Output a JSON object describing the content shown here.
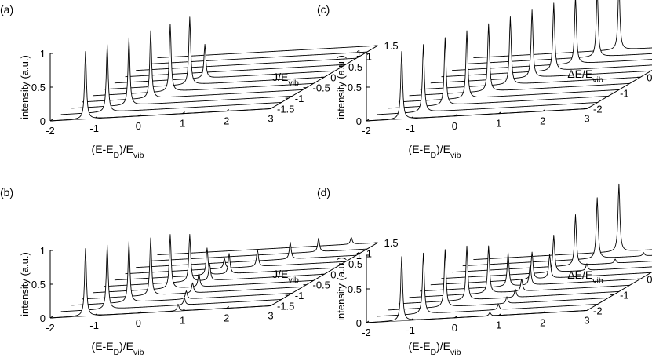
{
  "chart_data": [
    {
      "panel_label": "(a)",
      "type": "waterfall",
      "xlabel": {
        "main": "(E-E",
        "sub1": "D",
        "mid": ")/E",
        "sub2": "vib"
      },
      "ylabel": {
        "main": "J/E",
        "sub": "vib"
      },
      "zlabel": "intensity (a.u.)",
      "x_ticks": [
        "-2",
        "-1",
        "0",
        "1",
        "2",
        "3"
      ],
      "y_ticks": [
        "-1.5",
        "-1",
        "-0.5",
        "0",
        "0.5",
        "1",
        "1.5"
      ],
      "z_ticks": [
        "0",
        "0.5",
        "1"
      ],
      "xlim": [
        -2,
        3
      ],
      "ylim": [
        -1.5,
        1.5
      ],
      "zlim": [
        0,
        1
      ],
      "series": [
        {
          "y": -1.5,
          "peaks": [
            {
              "x": -1.2,
              "height": 1.0
            }
          ]
        },
        {
          "y": -1.2,
          "peaks": [
            {
              "x": -0.95,
              "height": 1.0
            }
          ]
        },
        {
          "y": -0.9,
          "peaks": [
            {
              "x": -0.7,
              "height": 1.0
            }
          ]
        },
        {
          "y": -0.6,
          "peaks": [
            {
              "x": -0.45,
              "height": 1.0
            }
          ]
        },
        {
          "y": -0.3,
          "peaks": [
            {
              "x": -0.25,
              "height": 1.0
            }
          ]
        },
        {
          "y": 0.0,
          "peaks": [
            {
              "x": -0.05,
              "height": 1.0
            }
          ]
        },
        {
          "y": 0.3,
          "peaks": [
            {
              "x": 0.05,
              "height": 0.5
            }
          ]
        },
        {
          "y": 0.6,
          "peaks": []
        },
        {
          "y": 0.9,
          "peaks": []
        },
        {
          "y": 1.2,
          "peaks": []
        },
        {
          "y": 1.5,
          "peaks": []
        }
      ]
    },
    {
      "panel_label": "(b)",
      "type": "waterfall",
      "xlabel": {
        "main": "(E-E",
        "sub1": "D",
        "mid": ")/E",
        "sub2": "vib"
      },
      "ylabel": {
        "main": "J/E",
        "sub": "vib"
      },
      "zlabel": "intensity (a.u.)",
      "x_ticks": [
        "-2",
        "-1",
        "0",
        "1",
        "2",
        "3"
      ],
      "y_ticks": [
        "-1.5",
        "-1",
        "-0.5",
        "0",
        "0.5",
        "1",
        "1.5"
      ],
      "z_ticks": [
        "0",
        "0.5",
        "1"
      ],
      "xlim": [
        -2,
        3
      ],
      "ylim": [
        -1.5,
        1.5
      ],
      "zlim": [
        0,
        1
      ],
      "series": [
        {
          "y": -1.5,
          "peaks": [
            {
              "x": -1.2,
              "height": 1.0
            },
            {
              "x": 0.9,
              "height": 0.1
            }
          ]
        },
        {
          "y": -1.2,
          "peaks": [
            {
              "x": -0.95,
              "height": 0.95
            },
            {
              "x": 0.8,
              "height": 0.1
            }
          ]
        },
        {
          "y": -0.9,
          "peaks": [
            {
              "x": -0.7,
              "height": 0.9
            },
            {
              "x": 0.6,
              "height": 0.12
            }
          ]
        },
        {
          "y": -0.6,
          "peaks": [
            {
              "x": -0.45,
              "height": 0.85
            },
            {
              "x": 0.5,
              "height": 0.15
            }
          ]
        },
        {
          "y": -0.3,
          "peaks": [
            {
              "x": -0.25,
              "height": 0.8
            },
            {
              "x": 0.4,
              "height": 0.2
            }
          ]
        },
        {
          "y": 0.0,
          "peaks": [
            {
              "x": -0.05,
              "height": 0.7
            },
            {
              "x": 0.4,
              "height": 0.25
            }
          ]
        },
        {
          "y": 0.3,
          "peaks": [
            {
              "x": 0.1,
              "height": 0.4
            },
            {
              "x": 0.6,
              "height": 0.3
            }
          ]
        },
        {
          "y": 0.6,
          "peaks": [
            {
              "x": 0.25,
              "height": 0.15
            },
            {
              "x": 1.0,
              "height": 0.25
            }
          ]
        },
        {
          "y": 0.9,
          "peaks": [
            {
              "x": 1.5,
              "height": 0.25
            }
          ]
        },
        {
          "y": 1.2,
          "peaks": [
            {
              "x": 1.9,
              "height": 0.2
            }
          ]
        },
        {
          "y": 1.5,
          "peaks": [
            {
              "x": 2.4,
              "height": 0.1
            }
          ]
        }
      ]
    },
    {
      "panel_label": "(c)",
      "type": "waterfall",
      "xlabel": {
        "main": "(E-E",
        "sub1": "D",
        "mid": ")/E",
        "sub2": "vib"
      },
      "ylabel": {
        "main": "ΔE/E",
        "sub": "vib"
      },
      "zlabel": "intensity (a.u.)",
      "x_ticks": [
        "-2",
        "-1",
        "0",
        "1",
        "2",
        "3"
      ],
      "y_ticks": [
        "-2",
        "-1",
        "0",
        "1",
        "2"
      ],
      "z_ticks": [
        "0",
        "0.5",
        "1"
      ],
      "xlim": [
        -2,
        3
      ],
      "ylim": [
        -2,
        2
      ],
      "zlim": [
        0,
        1
      ],
      "series": [
        {
          "y": -2.0,
          "peaks": [
            {
              "x": -1.2,
              "height": 1.0
            }
          ]
        },
        {
          "y": -1.6,
          "peaks": [
            {
              "x": -0.95,
              "height": 1.0
            }
          ]
        },
        {
          "y": -1.2,
          "peaks": [
            {
              "x": -0.7,
              "height": 1.0
            }
          ]
        },
        {
          "y": -0.8,
          "peaks": [
            {
              "x": -0.45,
              "height": 1.0
            }
          ]
        },
        {
          "y": -0.4,
          "peaks": [
            {
              "x": -0.2,
              "height": 1.0
            }
          ]
        },
        {
          "y": 0.0,
          "peaks": [
            {
              "x": 0.05,
              "height": 1.0
            }
          ]
        },
        {
          "y": 0.4,
          "peaks": [
            {
              "x": 0.3,
              "height": 1.0
            }
          ]
        },
        {
          "y": 0.8,
          "peaks": [
            {
              "x": 0.55,
              "height": 1.0
            }
          ]
        },
        {
          "y": 1.2,
          "peaks": [
            {
              "x": 0.8,
              "height": 1.0
            }
          ]
        },
        {
          "y": 1.6,
          "peaks": [
            {
              "x": 1.05,
              "height": 1.0
            }
          ]
        },
        {
          "y": 2.0,
          "peaks": [
            {
              "x": 1.3,
              "height": 1.0
            }
          ]
        }
      ]
    },
    {
      "panel_label": "(d)",
      "type": "waterfall",
      "xlabel": {
        "main": "(E-E",
        "sub1": "D",
        "mid": ")/E",
        "sub2": "vib"
      },
      "ylabel": {
        "main": "ΔE/E",
        "sub": "vib"
      },
      "zlabel": "intensity (a.u.)",
      "x_ticks": [
        "-2",
        "-1",
        "0",
        "1",
        "2",
        "3"
      ],
      "y_ticks": [
        "-2",
        "-1",
        "0",
        "1",
        "2"
      ],
      "z_ticks": [
        "0",
        "0.5",
        "1"
      ],
      "xlim": [
        -2,
        3
      ],
      "ylim": [
        -2,
        2
      ],
      "zlim": [
        0,
        1
      ],
      "series": [
        {
          "y": -2.0,
          "peaks": [
            {
              "x": -1.2,
              "height": 0.95
            },
            {
              "x": 0.8,
              "height": 0.05
            }
          ]
        },
        {
          "y": -1.6,
          "peaks": [
            {
              "x": -0.95,
              "height": 0.9
            },
            {
              "x": 0.75,
              "height": 0.08
            }
          ]
        },
        {
          "y": -1.2,
          "peaks": [
            {
              "x": -0.7,
              "height": 0.85
            },
            {
              "x": 0.7,
              "height": 0.1
            }
          ]
        },
        {
          "y": -0.8,
          "peaks": [
            {
              "x": -0.45,
              "height": 0.8
            },
            {
              "x": 0.65,
              "height": 0.12
            }
          ]
        },
        {
          "y": -0.4,
          "peaks": [
            {
              "x": -0.2,
              "height": 0.7
            },
            {
              "x": 0.55,
              "height": 0.18
            }
          ]
        },
        {
          "y": 0.0,
          "peaks": [
            {
              "x": 0.0,
              "height": 0.5
            },
            {
              "x": 0.5,
              "height": 0.3
            }
          ]
        },
        {
          "y": 0.4,
          "peaks": [
            {
              "x": 0.3,
              "height": 0.4
            },
            {
              "x": 0.7,
              "height": 0.35
            }
          ]
        },
        {
          "y": 0.8,
          "peaks": [
            {
              "x": 0.55,
              "height": 0.55
            },
            {
              "x": 1.3,
              "height": 0.1
            }
          ]
        },
        {
          "y": 1.2,
          "peaks": [
            {
              "x": 0.8,
              "height": 0.75
            },
            {
              "x": 1.7,
              "height": 0.06
            }
          ]
        },
        {
          "y": 1.6,
          "peaks": [
            {
              "x": 1.05,
              "height": 0.9
            },
            {
              "x": 2.1,
              "height": 0.05
            }
          ]
        },
        {
          "y": 2.0,
          "peaks": [
            {
              "x": 1.3,
              "height": 1.0
            },
            {
              "x": 2.5,
              "height": 0.04
            }
          ]
        }
      ]
    }
  ]
}
